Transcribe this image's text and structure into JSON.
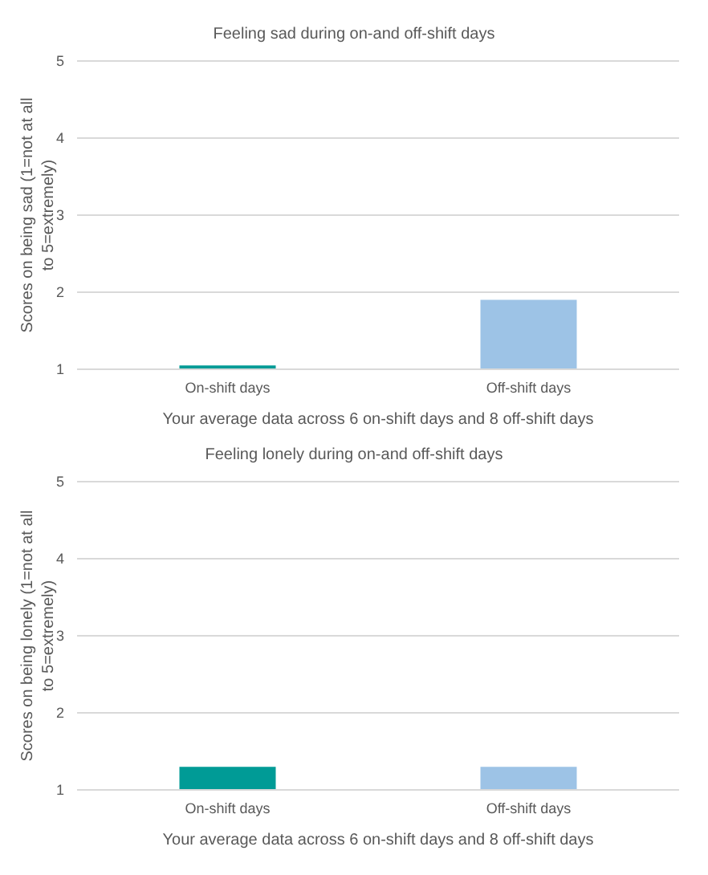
{
  "chart_data": [
    {
      "type": "bar",
      "title": "Feeling sad during on-and off-shift days",
      "xlabel": "Your average data across 6 on-shift days and 8 off-shift days",
      "ylabel": "Scores on being sad (1=not at all to 5=extremely)",
      "categories": [
        "On-shift days",
        "Off-shift days"
      ],
      "values": [
        1.05,
        1.9
      ],
      "colors": [
        "#009b96",
        "#9dc3e6"
      ],
      "ylim": [
        1,
        5
      ],
      "yticks": [
        1,
        2,
        3,
        4,
        5
      ],
      "grid": "y",
      "legend": false
    },
    {
      "type": "bar",
      "title": "Feeling lonely during on-and off-shift days",
      "xlabel": "Your average data across 6 on-shift days and 8 off-shift days",
      "ylabel": "Scores on being lonely (1=not at all to 5=extremely)",
      "categories": [
        "On-shift days",
        "Off-shift days"
      ],
      "values": [
        1.3,
        1.3
      ],
      "colors": [
        "#009b96",
        "#9dc3e6"
      ],
      "ylim": [
        1,
        5
      ],
      "yticks": [
        1,
        2,
        3,
        4,
        5
      ],
      "grid": "y",
      "legend": false
    }
  ]
}
